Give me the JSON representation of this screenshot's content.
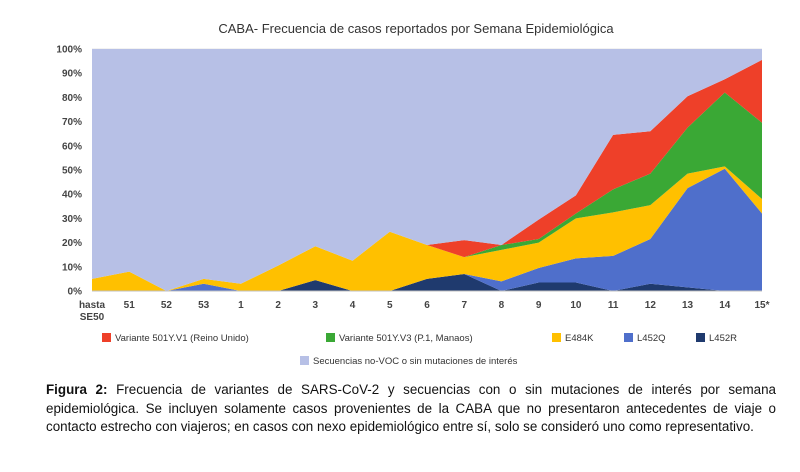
{
  "chart_data": {
    "type": "area",
    "stacked": true,
    "title": "CABA- Frecuencia de casos reportados por Semana Epidemiológica",
    "categories": [
      "hasta SE50",
      "51",
      "52",
      "53",
      "1",
      "2",
      "3",
      "4",
      "5",
      "6",
      "7",
      "8",
      "9",
      "10",
      "11",
      "12",
      "13",
      "14",
      "15*"
    ],
    "tick_lines": [
      [
        "hasta",
        "SE50"
      ],
      [
        "51"
      ],
      [
        "52"
      ],
      [
        "53"
      ],
      [
        "1"
      ],
      [
        "2"
      ],
      [
        "3"
      ],
      [
        "4"
      ],
      [
        "5"
      ],
      [
        "6"
      ],
      [
        "7"
      ],
      [
        "8"
      ],
      [
        "9"
      ],
      [
        "10"
      ],
      [
        "11"
      ],
      [
        "12"
      ],
      [
        "13"
      ],
      [
        "14"
      ],
      [
        "15*"
      ]
    ],
    "ylim": [
      0,
      100
    ],
    "yticks": [
      "0%",
      "10%",
      "20%",
      "30%",
      "40%",
      "50%",
      "60%",
      "70%",
      "80%",
      "90%",
      "100%"
    ],
    "series": [
      {
        "name": "L452R",
        "color": "#1F3A6E",
        "values": [
          0,
          0,
          0,
          0,
          0,
          0,
          4.5,
          0,
          0,
          5,
          7,
          0,
          3.5,
          3.5,
          0,
          3,
          1.5,
          0,
          0
        ]
      },
      {
        "name": "L452Q",
        "color": "#4F6FCB",
        "values": [
          0,
          0,
          0,
          3,
          0,
          0,
          0,
          0,
          0,
          0,
          0,
          4,
          6,
          10,
          14.5,
          18.5,
          41,
          50.5,
          32
        ]
      },
      {
        "name": "E484K",
        "color": "#FFC000",
        "values": [
          5,
          8,
          0,
          2,
          3,
          10.5,
          14,
          12.5,
          24.5,
          14,
          7,
          13,
          10.5,
          16.5,
          18,
          14,
          6,
          1,
          6
        ]
      },
      {
        "name": "Variante 501Y.V3 (P.1, Manaos)",
        "color": "#3AA835",
        "values": [
          0,
          0,
          0,
          0,
          0,
          0,
          0,
          0,
          0,
          0,
          0,
          2,
          1.5,
          2,
          9.5,
          13,
          19,
          30.5,
          31.5
        ]
      },
      {
        "name": "Variante 501Y.V1 (Reino Unido)",
        "color": "#EE4029",
        "values": [
          0,
          0,
          0,
          0,
          0,
          0,
          0,
          0,
          0,
          0,
          7,
          0,
          8,
          7.5,
          22.5,
          17.5,
          13,
          5.5,
          26
        ]
      },
      {
        "name": "Secuencias no-VOC o sin mutaciones de interés",
        "color": "#B7C0E6",
        "values": [
          95,
          92,
          100,
          95,
          97,
          89.5,
          81.5,
          87.5,
          75.5,
          81,
          79,
          81,
          70.5,
          60.5,
          35.5,
          34,
          19.5,
          12.5,
          4.5
        ]
      }
    ],
    "legend": [
      {
        "name": "Variante 501Y.V1 (Reino Unido)",
        "color": "#EE4029"
      },
      {
        "name": "Variante 501Y.V3 (P.1, Manaos)",
        "color": "#3AA835"
      },
      {
        "name": "E484K",
        "color": "#FFC000"
      },
      {
        "name": "L452Q",
        "color": "#4F6FCB"
      },
      {
        "name": "L452R",
        "color": "#1F3A6E"
      },
      {
        "name": "Secuencias no-VOC o sin mutaciones de interés",
        "color": "#B7C0E6"
      }
    ]
  },
  "caption": {
    "label": "Figura 2:",
    "text": " Frecuencia de variantes de SARS-CoV-2 y secuencias con o sin mutaciones de interés por semana epidemiológica. Se incluyen solamente casos provenientes de la CABA que no presentaron antecedentes de viaje o contacto estrecho con viajeros; en casos con nexo epidemiológico entre sí, solo se consideró uno como representativo."
  }
}
